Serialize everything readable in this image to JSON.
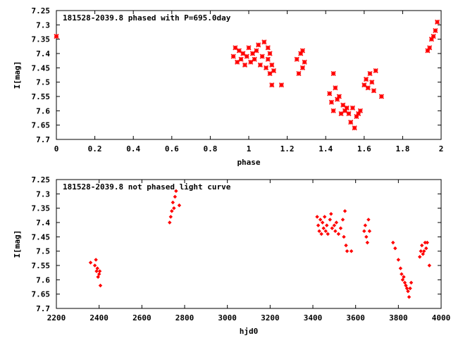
{
  "chart_data": [
    {
      "type": "scatter",
      "title": "",
      "legend": "181528-2039.8 phased with P=695.0day",
      "legend_placement": "top-left",
      "xlabel": "phase",
      "ylabel": "I[mag]",
      "xlim": [
        0,
        2
      ],
      "ylim": [
        7.25,
        7.7
      ],
      "y_inverted": true,
      "marker": "cross",
      "color": "#ff0000",
      "xticks": [
        "0",
        "0.2",
        "0.4",
        "0.6",
        "0.8",
        "1",
        "1.2",
        "1.4",
        "1.6",
        "1.8",
        "2"
      ],
      "yticks": [
        "7.25",
        "7.3",
        "7.35",
        "7.4",
        "7.45",
        "7.5",
        "7.55",
        "7.6",
        "7.65",
        "7.7"
      ],
      "x": [
        0.0,
        0.92,
        0.93,
        0.94,
        0.95,
        0.96,
        0.97,
        0.98,
        0.99,
        1.0,
        1.01,
        1.02,
        1.03,
        1.04,
        1.05,
        1.06,
        1.07,
        1.08,
        1.09,
        1.1,
        1.1,
        1.11,
        1.11,
        1.12,
        1.12,
        1.13,
        1.17,
        1.25,
        1.26,
        1.27,
        1.28,
        1.28,
        1.29,
        1.42,
        1.43,
        1.44,
        1.44,
        1.45,
        1.46,
        1.47,
        1.48,
        1.49,
        1.5,
        1.51,
        1.52,
        1.53,
        1.54,
        1.55,
        1.56,
        1.57,
        1.58,
        1.6,
        1.61,
        1.62,
        1.63,
        1.64,
        1.65,
        1.66,
        1.69,
        1.93,
        1.94,
        1.95,
        1.96,
        1.97,
        1.98
      ],
      "y": [
        7.34,
        7.41,
        7.38,
        7.43,
        7.39,
        7.42,
        7.4,
        7.44,
        7.41,
        7.38,
        7.43,
        7.4,
        7.42,
        7.39,
        7.37,
        7.44,
        7.41,
        7.36,
        7.45,
        7.38,
        7.42,
        7.47,
        7.4,
        7.51,
        7.44,
        7.46,
        7.51,
        7.42,
        7.47,
        7.4,
        7.45,
        7.39,
        7.43,
        7.54,
        7.57,
        7.47,
        7.6,
        7.52,
        7.56,
        7.55,
        7.61,
        7.58,
        7.6,
        7.59,
        7.61,
        7.64,
        7.59,
        7.66,
        7.62,
        7.61,
        7.6,
        7.51,
        7.49,
        7.52,
        7.47,
        7.5,
        7.53,
        7.46,
        7.55,
        7.39,
        7.38,
        7.35,
        7.34,
        7.32,
        7.29
      ]
    },
    {
      "type": "scatter",
      "title": "",
      "legend": "181528-2039.8 not phased light curve",
      "legend_placement": "top-left",
      "xlabel": "hjd0",
      "ylabel": "I[mag]",
      "xlim": [
        2200,
        4000
      ],
      "ylim": [
        7.25,
        7.7
      ],
      "y_inverted": true,
      "marker": "diamond",
      "color": "#ff0000",
      "xticks": [
        "2200",
        "2400",
        "2600",
        "2800",
        "3000",
        "3200",
        "3400",
        "3600",
        "3800",
        "4000"
      ],
      "yticks": [
        "7.25",
        "7.3",
        "7.35",
        "7.4",
        "7.45",
        "7.5",
        "7.55",
        "7.6",
        "7.65",
        "7.7"
      ],
      "x": [
        2360,
        2380,
        2385,
        2388,
        2392,
        2395,
        2400,
        2403,
        2406,
        2730,
        2735,
        2740,
        2745,
        2750,
        2755,
        2760,
        2775,
        3420,
        3425,
        3430,
        3435,
        3440,
        3445,
        3450,
        3455,
        3460,
        3465,
        3470,
        3480,
        3485,
        3490,
        3500,
        3505,
        3510,
        3520,
        3530,
        3540,
        3545,
        3550,
        3555,
        3560,
        3580,
        3640,
        3645,
        3650,
        3655,
        3660,
        3665,
        3775,
        3785,
        3800,
        3810,
        3815,
        3820,
        3825,
        3830,
        3835,
        3840,
        3845,
        3850,
        3855,
        3860,
        3900,
        3905,
        3910,
        3915,
        3920,
        3925,
        3930,
        3935,
        3945
      ],
      "y": [
        7.54,
        7.55,
        7.53,
        7.57,
        7.56,
        7.59,
        7.58,
        7.57,
        7.62,
        7.4,
        7.38,
        7.36,
        7.33,
        7.35,
        7.31,
        7.29,
        7.34,
        7.38,
        7.41,
        7.43,
        7.39,
        7.44,
        7.4,
        7.42,
        7.38,
        7.43,
        7.41,
        7.44,
        7.39,
        7.37,
        7.42,
        7.41,
        7.43,
        7.4,
        7.44,
        7.42,
        7.39,
        7.45,
        7.36,
        7.48,
        7.5,
        7.5,
        7.43,
        7.41,
        7.45,
        7.47,
        7.39,
        7.43,
        7.47,
        7.49,
        7.53,
        7.56,
        7.58,
        7.6,
        7.59,
        7.61,
        7.62,
        7.63,
        7.64,
        7.66,
        7.63,
        7.61,
        7.52,
        7.5,
        7.48,
        7.51,
        7.5,
        7.47,
        7.49,
        7.47,
        7.55
      ]
    }
  ]
}
